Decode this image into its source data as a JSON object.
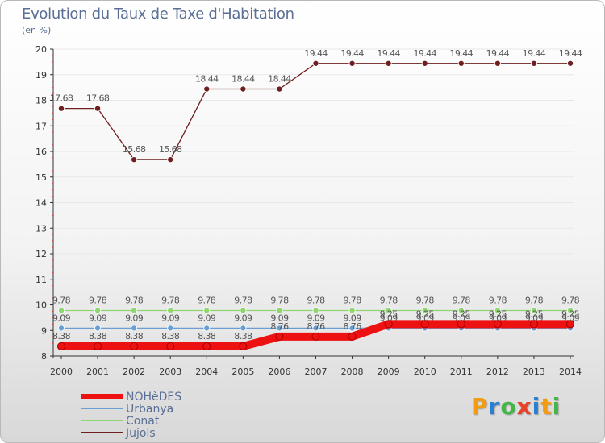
{
  "chart_data": {
    "type": "line",
    "title": "Evolution du Taux de Taxe d'Habitation",
    "ylabel": "(en %)",
    "ylim": [
      8,
      20
    ],
    "yticks": [
      "8",
      "9",
      "10",
      "11",
      "12",
      "13",
      "14",
      "15",
      "16",
      "17",
      "18",
      "19",
      "20"
    ],
    "categories": [
      "2000",
      "2001",
      "2002",
      "2003",
      "2004",
      "2005",
      "2006",
      "2007",
      "2008",
      "2009",
      "2010",
      "2011",
      "2012",
      "2013",
      "2014"
    ],
    "series": [
      {
        "name": "Jujols",
        "color": "#6e1f1f",
        "values": [
          17.68,
          17.68,
          15.68,
          15.68,
          18.44,
          18.44,
          18.44,
          19.44,
          19.44,
          19.44,
          19.44,
          19.44,
          19.44,
          19.44,
          19.44
        ],
        "labels": [
          "17.68",
          "17.68",
          "15.68",
          "15.68",
          "18.44",
          "18.44",
          "18.44",
          "19.44",
          "19.44",
          "19.44",
          "19.44",
          "19.44",
          "19.44",
          "19.44",
          "19.44"
        ]
      },
      {
        "name": "Conat",
        "color": "#8fd66e",
        "values": [
          9.78,
          9.78,
          9.78,
          9.78,
          9.78,
          9.78,
          9.78,
          9.78,
          9.78,
          9.78,
          9.78,
          9.78,
          9.78,
          9.78,
          9.78
        ],
        "labels": [
          "9.78",
          "9.78",
          "9.78",
          "9.78",
          "9.78",
          "9.78",
          "9.78",
          "9.78",
          "9.78",
          "9.78",
          "9.78",
          "9.78",
          "9.78",
          "9.78",
          "9.78"
        ]
      },
      {
        "name": "Urbanya",
        "color": "#6a9fd3",
        "values": [
          9.09,
          9.09,
          9.09,
          9.09,
          9.09,
          9.09,
          9.09,
          9.09,
          9.09,
          9.09,
          9.09,
          9.09,
          9.09,
          9.09,
          9.09
        ],
        "labels": [
          "9.09",
          "9.09",
          "9.09",
          "9.09",
          "9.09",
          "9.09",
          "9.09",
          "9.09",
          "9.09",
          "9.09",
          "9.09",
          "9.09",
          "9.09",
          "9.09",
          "9.09"
        ]
      },
      {
        "name": "NOHèDES",
        "color": "#ee1111",
        "values": [
          8.38,
          8.38,
          8.38,
          8.38,
          8.38,
          8.38,
          8.76,
          8.76,
          8.76,
          9.25,
          9.25,
          9.25,
          9.25,
          9.25,
          9.25
        ],
        "labels": [
          "8.38",
          "8.38",
          "8.38",
          "8.38",
          "8.38",
          "8.38",
          "8.76",
          "8.76",
          "8.76",
          "9.25",
          "9.25",
          "9.25",
          "9.25",
          "9.25",
          "9.25"
        ]
      }
    ]
  },
  "legend": [
    "NOHèDES",
    "Urbanya",
    "Conat",
    "Jujols"
  ],
  "brand": {
    "letters": [
      "P",
      "r",
      "o",
      "x",
      "i",
      "t",
      "i"
    ],
    "colors": [
      "#f39c12",
      "#2b7fd0",
      "#43b649",
      "#e8412c",
      "#2b7fd0",
      "#f39c12",
      "#43b649"
    ]
  }
}
